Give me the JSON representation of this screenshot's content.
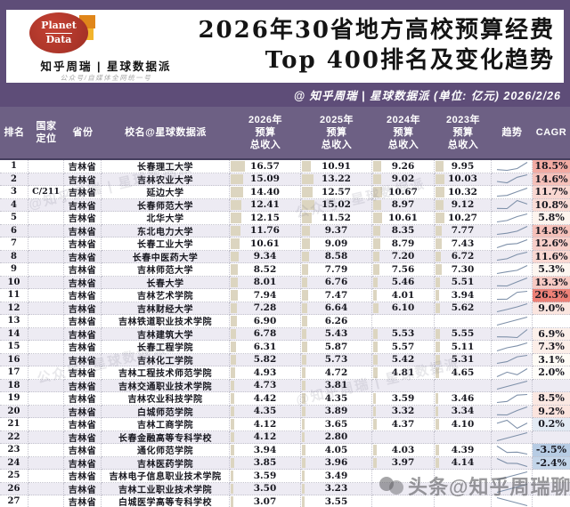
{
  "brand": {
    "logo_top": "Planet",
    "logo_bottom": "Data",
    "name": "知乎周瑞 | 星球数据派",
    "tagline": "公众号/自媒体全网统一号"
  },
  "title": {
    "line1": "2026年30省地方高校预算经费",
    "line2": "Top 400排名及变化趋势"
  },
  "subheader": {
    "text": "@ 知乎周瑞 | 星球数据派  (单位: 亿元)  2026/2/26"
  },
  "watermarks": {
    "diagonal1": "@知乎周瑞 | 星球数据派",
    "diagonal2": "公众号: 星球数据派",
    "social": "头条@知乎周瑞聊大学"
  },
  "colors": {
    "purple_band": "#5e4d78",
    "table_header_bg": "#6d6084",
    "row_alt": "#edebf3",
    "data_bar": "#dcd5c0",
    "sparkline": "#7e90a9",
    "cagr_max_red": "#ed8177",
    "cagr_min_blue": "#b7cce4"
  },
  "chart_data": {
    "type": "table",
    "title": "2026年30省地方高校预算经费 Top 400排名及变化趋势",
    "unit": "亿元",
    "date": "2026/2/26",
    "sparkline_order": [
      "2023",
      "2024",
      "2025",
      "2026"
    ],
    "columns": [
      {
        "id": "rank",
        "lines": [
          "排名"
        ]
      },
      {
        "id": "tier",
        "lines": [
          "国家",
          "定位"
        ]
      },
      {
        "id": "province",
        "lines": [
          "省份"
        ]
      },
      {
        "id": "name",
        "lines": [
          "校名@星球数据派"
        ]
      },
      {
        "id": "y2026",
        "lines": [
          "2026年",
          "预算",
          "总收入"
        ]
      },
      {
        "id": "y2025",
        "lines": [
          "2025年",
          "预算",
          "总收入"
        ]
      },
      {
        "id": "y2024",
        "lines": [
          "2024年",
          "预算",
          "总收入"
        ]
      },
      {
        "id": "y2023",
        "lines": [
          "2023年",
          "预算",
          "总收入"
        ]
      },
      {
        "id": "trend",
        "lines": [
          "趋势"
        ]
      },
      {
        "id": "cagr",
        "lines": [
          "CAGR"
        ]
      }
    ],
    "rows": [
      {
        "rank": 1,
        "tier": "",
        "province": "吉林省",
        "name": "长春理工大学",
        "y2026": 16.57,
        "y2025": 10.91,
        "y2024": 9.26,
        "y2023": 9.95,
        "cagr": "18.5%",
        "cagr_bg": "#f2aba3"
      },
      {
        "rank": 2,
        "tier": "",
        "province": "吉林省",
        "name": "吉林农业大学",
        "y2026": 15.09,
        "y2025": 13.22,
        "y2024": 9.02,
        "y2023": 10.03,
        "cagr": "14.6%",
        "cagr_bg": "#f5c1ba"
      },
      {
        "rank": 3,
        "tier": "C/211",
        "province": "吉林省",
        "name": "延边大学",
        "y2026": 14.4,
        "y2025": 12.57,
        "y2024": 10.67,
        "y2023": 10.32,
        "cagr": "11.7%",
        "cagr_bg": "#f9d7d1"
      },
      {
        "rank": 4,
        "tier": "",
        "province": "吉林省",
        "name": "长春师范大学",
        "y2026": 12.41,
        "y2025": 15.02,
        "y2024": 8.97,
        "y2023": 9.12,
        "cagr": "10.8%",
        "cagr_bg": "#fadcd6"
      },
      {
        "rank": 5,
        "tier": "",
        "province": "吉林省",
        "name": "北华大学",
        "y2026": 12.15,
        "y2025": 11.52,
        "y2024": 10.61,
        "y2023": 10.27,
        "cagr": "5.8%",
        "cagr_bg": "#fdf4ee"
      },
      {
        "rank": 6,
        "tier": "",
        "province": "吉林省",
        "name": "东北电力大学",
        "y2026": 11.76,
        "y2025": 9.37,
        "y2024": 8.35,
        "y2023": 7.77,
        "cagr": "14.8%",
        "cagr_bg": "#f5c0b9"
      },
      {
        "rank": 7,
        "tier": "",
        "province": "吉林省",
        "name": "长春工业大学",
        "y2026": 10.61,
        "y2025": 9.09,
        "y2024": 8.79,
        "y2023": 7.43,
        "cagr": "12.6%",
        "cagr_bg": "#f8cfc9"
      },
      {
        "rank": 8,
        "tier": "",
        "province": "吉林省",
        "name": "长春中医药大学",
        "y2026": 9.34,
        "y2025": 8.58,
        "y2024": 7.2,
        "y2023": 6.72,
        "cagr": "11.6%",
        "cagr_bg": "#f9d8d2"
      },
      {
        "rank": 9,
        "tier": "",
        "province": "吉林省",
        "name": "吉林师范大学",
        "y2026": 8.52,
        "y2025": 7.79,
        "y2024": 7.56,
        "y2023": 7.3,
        "cagr": "5.3%",
        "cagr_bg": "#fdf6f0"
      },
      {
        "rank": 10,
        "tier": "",
        "province": "吉林省",
        "name": "长春大学",
        "y2026": 8.01,
        "y2025": 6.76,
        "y2024": 5.46,
        "y2023": 5.51,
        "cagr": "13.3%",
        "cagr_bg": "#f7cac3"
      },
      {
        "rank": 11,
        "tier": "",
        "province": "吉林省",
        "name": "吉林艺术学院",
        "y2026": 7.94,
        "y2025": 7.47,
        "y2024": 4.01,
        "y2023": 3.94,
        "cagr": "26.3%",
        "cagr_bg": "#ed8177"
      },
      {
        "rank": 12,
        "tier": "",
        "province": "吉林省",
        "name": "吉林财经大学",
        "y2026": 7.28,
        "y2025": 6.64,
        "y2024": 6.1,
        "y2023": 5.62,
        "cagr": "9.0%",
        "cagr_bg": "#fbe5df"
      },
      {
        "rank": 13,
        "tier": "",
        "province": "吉林省",
        "name": "吉林铁道职业技术学院",
        "y2026": 6.9,
        "y2025": 6.26,
        "y2024": null,
        "y2023": null,
        "cagr": "",
        "cagr_bg": null
      },
      {
        "rank": 14,
        "tier": "",
        "province": "吉林省",
        "name": "吉林建筑大学",
        "y2026": 6.78,
        "y2025": 5.43,
        "y2024": 5.53,
        "y2023": 5.55,
        "cagr": "6.9%",
        "cagr_bg": "#fcf0ea"
      },
      {
        "rank": 15,
        "tier": "",
        "province": "吉林省",
        "name": "长春工程学院",
        "y2026": 6.31,
        "y2025": 5.87,
        "y2024": 5.57,
        "y2023": 5.11,
        "cagr": "7.3%",
        "cagr_bg": "#fceee8"
      },
      {
        "rank": 16,
        "tier": "",
        "province": "吉林省",
        "name": "吉林化工学院",
        "y2026": 5.82,
        "y2025": 5.73,
        "y2024": 5.42,
        "y2023": 5.31,
        "cagr": "3.1%",
        "cagr_bg": "#fefbf5"
      },
      {
        "rank": 17,
        "tier": "",
        "province": "吉林省",
        "name": "吉林工程技术师范学院",
        "y2026": 4.93,
        "y2025": 4.72,
        "y2024": 4.81,
        "y2023": 4.65,
        "cagr": "2.0%",
        "cagr_bg": "#fffdf9"
      },
      {
        "rank": 18,
        "tier": "",
        "province": "吉林省",
        "name": "吉林交通职业技术学院",
        "y2026": 4.73,
        "y2025": 3.81,
        "y2024": null,
        "y2023": null,
        "cagr": "",
        "cagr_bg": null
      },
      {
        "rank": 19,
        "tier": "",
        "province": "吉林省",
        "name": "吉林农业科技学院",
        "y2026": 4.42,
        "y2025": 4.35,
        "y2024": 3.59,
        "y2023": 3.46,
        "cagr": "8.5%",
        "cagr_bg": "#fbe8e2"
      },
      {
        "rank": 20,
        "tier": "",
        "province": "吉林省",
        "name": "白城师范学院",
        "y2026": 4.35,
        "y2025": 3.89,
        "y2024": 3.32,
        "y2023": 3.34,
        "cagr": "9.2%",
        "cagr_bg": "#fbe4de"
      },
      {
        "rank": 21,
        "tier": "",
        "province": "吉林省",
        "name": "吉林工商学院",
        "y2026": 4.12,
        "y2025": 3.65,
        "y2024": 4.37,
        "y2023": 4.1,
        "cagr": "0.2%",
        "cagr_bg": "#e3ebf4"
      },
      {
        "rank": 22,
        "tier": "",
        "province": "吉林省",
        "name": "长春金融高等专科学校",
        "y2026": 4.12,
        "y2025": 2.8,
        "y2024": null,
        "y2023": null,
        "cagr": "",
        "cagr_bg": null
      },
      {
        "rank": 23,
        "tier": "",
        "province": "吉林省",
        "name": "通化师范学院",
        "y2026": 3.94,
        "y2025": 4.05,
        "y2024": 4.03,
        "y2023": 4.39,
        "cagr": "-3.5%",
        "cagr_bg": "#b7cce4"
      },
      {
        "rank": 24,
        "tier": "",
        "province": "吉林省",
        "name": "吉林医药学院",
        "y2026": 3.85,
        "y2025": 3.96,
        "y2024": 3.97,
        "y2023": 4.14,
        "cagr": "-2.4%",
        "cagr_bg": "#c3d5e9"
      },
      {
        "rank": 25,
        "tier": "",
        "province": "吉林省",
        "name": "吉林电子信息职业技术学院",
        "y2026": 3.59,
        "y2025": 3.49,
        "y2024": null,
        "y2023": null,
        "cagr": "",
        "cagr_bg": null
      },
      {
        "rank": 26,
        "tier": "",
        "province": "吉林省",
        "name": "吉林工业职业技术学院",
        "y2026": 3.5,
        "y2025": 3.23,
        "y2024": null,
        "y2023": null,
        "cagr": "",
        "cagr_bg": null
      },
      {
        "rank": 27,
        "tier": "",
        "province": "吉林省",
        "name": "白城医学高等专科学校",
        "y2026": 3.07,
        "y2025": 3.55,
        "y2024": null,
        "y2023": null,
        "cagr": "",
        "cagr_bg": null
      }
    ]
  }
}
